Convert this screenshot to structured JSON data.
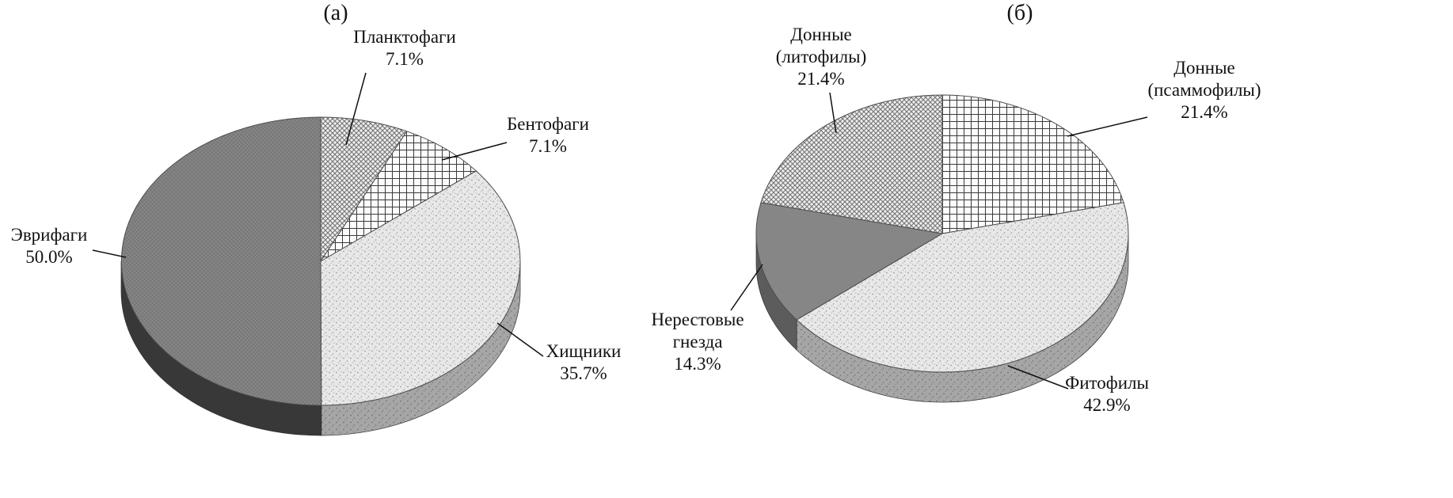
{
  "figure": {
    "background": "#ffffff",
    "text_color": "#111111"
  },
  "chart_data": [
    {
      "type": "pie",
      "panel_label": "(а)",
      "style": "3d-pie-grayscale-hatched",
      "direction": "clockwise",
      "start_angle": "12-o'clock",
      "unit": "%",
      "categories": [
        "Планктофаги",
        "Бентофаги",
        "Хищники",
        "Эврифаги"
      ],
      "values": [
        7.1,
        7.1,
        35.7,
        50.0
      ],
      "slices": [
        {
          "name": "Планктофаги",
          "value": 7.1,
          "pattern": "diagonal-crosshatch",
          "rim_color": "#9a9a9a",
          "label_display": "Планктофаги\n7.1%"
        },
        {
          "name": "Бентофаги",
          "value": 7.1,
          "pattern": "grid",
          "rim_color": "#9a9a9a",
          "label_display": "Бентофаги\n7.1%"
        },
        {
          "name": "Хищники",
          "value": 35.7,
          "pattern": "stipple",
          "rim_color": "#a2a2a2",
          "label_display": "Хищники\n35.7%"
        },
        {
          "name": "Эврифаги",
          "value": 50.0,
          "pattern": "dark-mesh",
          "rim_color": "#383838",
          "label_display": "Эврифаги\n50.0%"
        }
      ]
    },
    {
      "type": "pie",
      "panel_label": "(б)",
      "style": "3d-pie-grayscale-hatched",
      "direction": "clockwise",
      "start_angle": "12-o'clock",
      "unit": "%",
      "categories": [
        "Донные (псаммофилы)",
        "Фитофилы",
        "Нерестовые гнезда",
        "Донные (литофилы)"
      ],
      "values": [
        21.4,
        42.9,
        14.3,
        21.4
      ],
      "slices": [
        {
          "name": "Донные (псаммофилы)",
          "value": 21.4,
          "pattern": "grid",
          "rim_color": "#9a9a9a",
          "label_display": "Донные\n(псаммофилы)\n21.4%"
        },
        {
          "name": "Фитофилы",
          "value": 42.9,
          "pattern": "stipple",
          "rim_color": "#a2a2a2",
          "label_display": "Фитофилы\n42.9%"
        },
        {
          "name": "Нерестовые гнезда",
          "value": 14.3,
          "pattern": "solid-gray",
          "color": "#868686",
          "rim_color": "#5c5c5c",
          "label_display": "Нерестовые\nгнезда\n14.3%"
        },
        {
          "name": "Донные (литофилы)",
          "value": 21.4,
          "pattern": "diagonal-crosshatch",
          "rim_color": "#9a9a9a",
          "label_display": "Донные\n(литофилы)\n21.4%"
        }
      ]
    }
  ]
}
